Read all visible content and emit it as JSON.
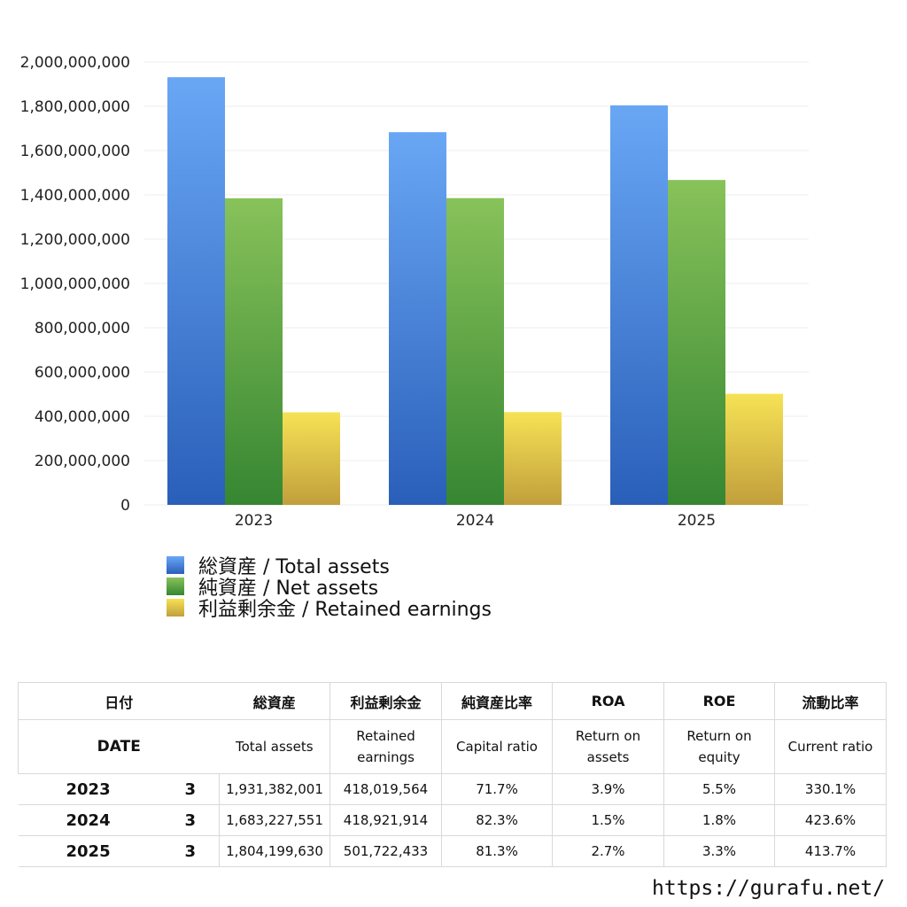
{
  "chart_data": {
    "type": "bar",
    "categories": [
      "2023",
      "2024",
      "2025"
    ],
    "series": [
      {
        "name": "総資産 / Total assets",
        "values": [
          1931382001,
          1683227551,
          1804199630
        ],
        "color": "#3f7fdf"
      },
      {
        "name": "純資産 / Net assets",
        "values": [
          1384700000,
          1385300000,
          1467300000
        ],
        "color": "#5aa545"
      },
      {
        "name": "利益剰余金 / Retained earnings",
        "values": [
          418019564,
          418921914,
          501722433
        ],
        "color": "#e3c443"
      }
    ],
    "ylim": [
      0,
      2000000000
    ],
    "yticks": [
      "0",
      "200,000,000",
      "400,000,000",
      "600,000,000",
      "800,000,000",
      "1,000,000,000",
      "1,200,000,000",
      "1,400,000,000",
      "1,600,000,000",
      "1,800,000,000",
      "2,000,000,000"
    ],
    "ytick_values": [
      0,
      200000000,
      400000000,
      600000000,
      800000000,
      1000000000,
      1200000000,
      1400000000,
      1600000000,
      1800000000,
      2000000000
    ],
    "grid": true,
    "legend_position": "bottom"
  },
  "legend": [
    {
      "label": "総資産 / Total assets"
    },
    {
      "label": "純資産 / Net assets"
    },
    {
      "label": "利益剰余金 / Retained earnings"
    }
  ],
  "table": {
    "headers_jp": [
      "日付",
      "総資産",
      "利益剰余金",
      "純資産比率",
      "ROA",
      "ROE",
      "流動比率"
    ],
    "headers_en": {
      "date": "DATE",
      "total_assets": "Total assets",
      "retained_1": "Retained",
      "retained_2": "earnings",
      "capital_ratio": "Capital ratio",
      "roa_1": "Return on",
      "roa_2": "assets",
      "roe_1": "Return on",
      "roe_2": "equity",
      "current_ratio": "Current ratio"
    },
    "rows": [
      {
        "year": "2023",
        "month": "3",
        "total_assets": "1,931,382,001",
        "retained_earnings": "418,019,564",
        "capital_ratio": "71.7%",
        "roa": "3.9%",
        "roe": "5.5%",
        "current_ratio": "330.1%"
      },
      {
        "year": "2024",
        "month": "3",
        "total_assets": "1,683,227,551",
        "retained_earnings": "418,921,914",
        "capital_ratio": "82.3%",
        "roa": "1.5%",
        "roe": "1.8%",
        "current_ratio": "423.6%"
      },
      {
        "year": "2025",
        "month": "3",
        "total_assets": "1,804,199,630",
        "retained_earnings": "501,722,433",
        "capital_ratio": "81.3%",
        "roa": "2.7%",
        "roe": "3.3%",
        "current_ratio": "413.7%"
      }
    ]
  },
  "site_url": "https://gurafu.net/"
}
